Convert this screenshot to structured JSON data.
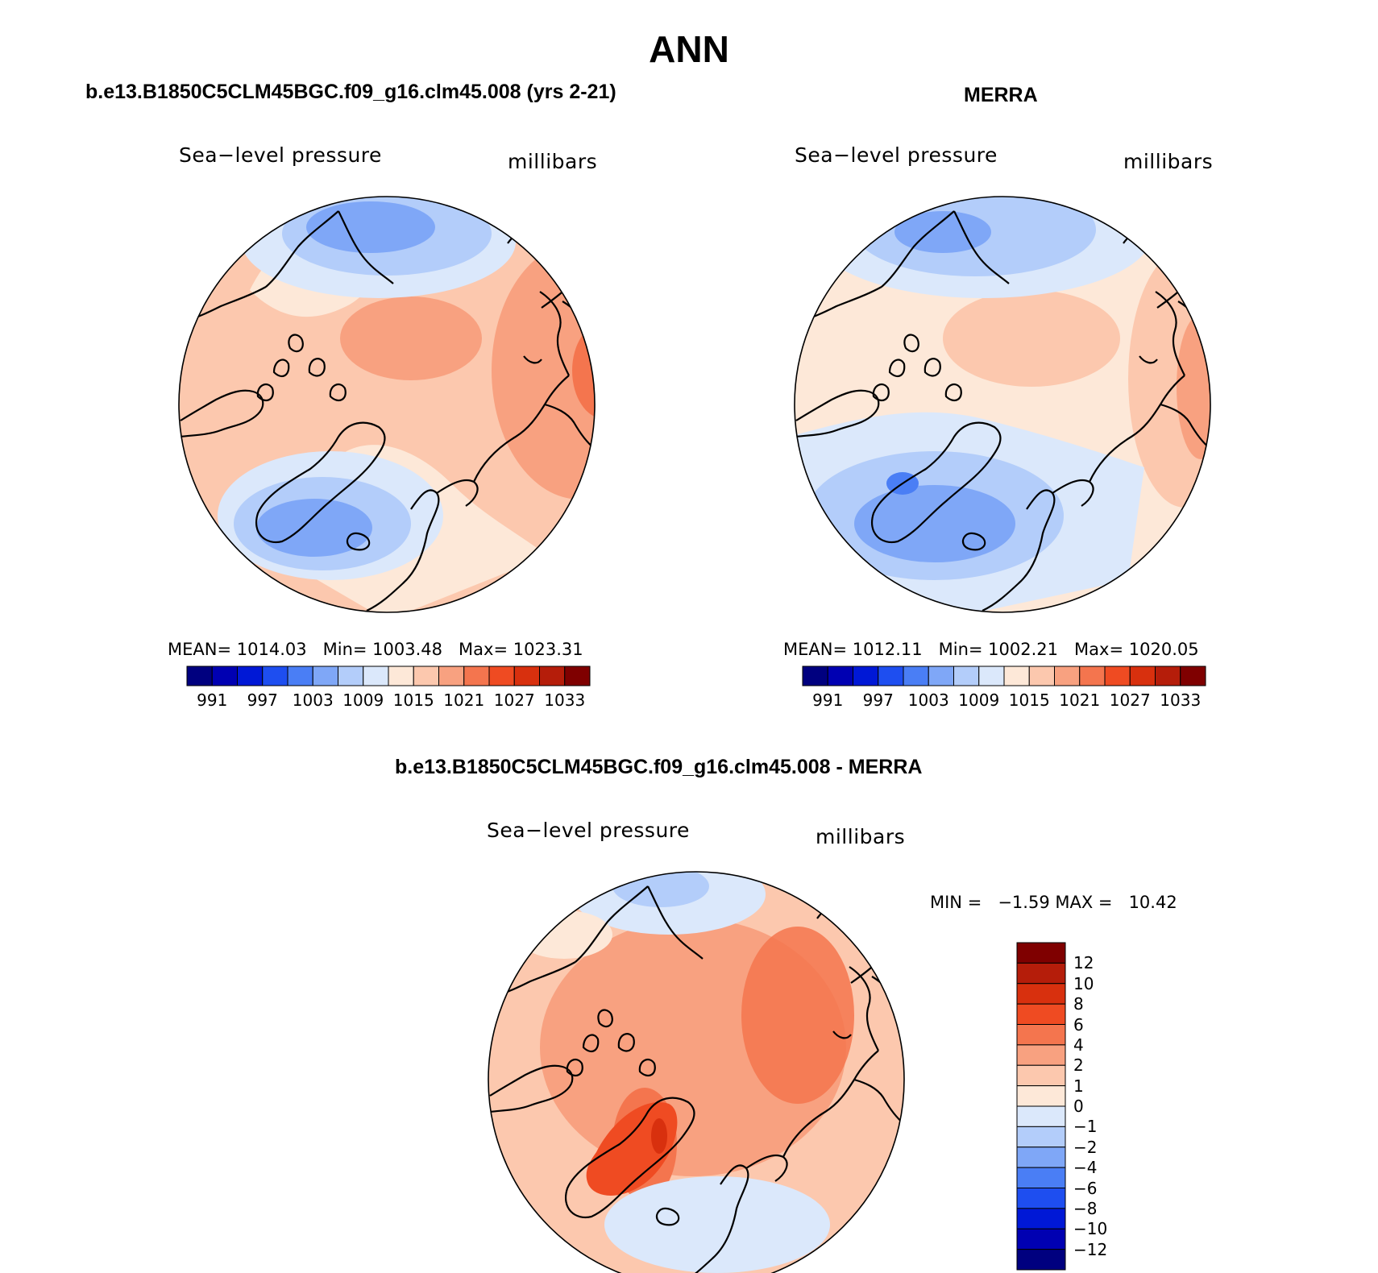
{
  "main_title": "ANN",
  "colors": {
    "blue_scale": [
      "#00007f",
      "#0000b2",
      "#0018d6",
      "#1e4ef0",
      "#4a7ef5",
      "#7fa7f7",
      "#b3cdfa",
      "#dbe8fb"
    ],
    "red_scale": [
      "#fde8d8",
      "#fcc8ae",
      "#f8a180",
      "#f4754e",
      "#ef4b22",
      "#d8300e",
      "#b51d0a",
      "#7f0000"
    ],
    "land_outline": "#000000"
  },
  "panels": [
    {
      "id": "model",
      "title": "b.e13.B1850C5CLM45BGC.f09_g16.clm45.008 (yrs 2-21)",
      "left_label": "Sea−level pressure",
      "right_label": "millibars",
      "stats": {
        "mean_label": "MEAN=",
        "mean": "1014.03",
        "min_label": "Min=",
        "min": "1003.48",
        "max_label": "Max=",
        "max": "1023.31"
      },
      "colorbar_ticks": [
        "991",
        "997",
        "1003",
        "1009",
        "1015",
        "1021",
        "1027",
        "1033"
      ]
    },
    {
      "id": "merra",
      "title": "MERRA",
      "left_label": "Sea−level pressure",
      "right_label": "millibars",
      "stats": {
        "mean_label": "MEAN=",
        "mean": "1012.11",
        "min_label": "Min=",
        "min": "1002.21",
        "max_label": "Max=",
        "max": "1020.05"
      },
      "colorbar_ticks": [
        "991",
        "997",
        "1003",
        "1009",
        "1015",
        "1021",
        "1027",
        "1033"
      ]
    },
    {
      "id": "diff",
      "title": "b.e13.B1850C5CLM45BGC.f09_g16.clm45.008 - MERRA",
      "left_label": "Sea−level pressure",
      "right_label": "millibars",
      "stats": {
        "min_label": "MIN =",
        "min": "−1.59",
        "max_label": "MAX =",
        "max": "10.42"
      },
      "colorbar_ticks": [
        "12",
        "10",
        "8",
        "6",
        "4",
        "2",
        "1",
        "0",
        "−1",
        "−2",
        "−4",
        "−6",
        "−8",
        "−10",
        "−12"
      ]
    }
  ],
  "chart_data": [
    {
      "type": "heatmap",
      "title": "b.e13.B1850C5CLM45BGC.f09_g16.clm45.008 (yrs 2-21)",
      "variable": "Sea−level pressure",
      "units": "millibars",
      "projection": "polar-stereographic, north pole",
      "mean": 1014.03,
      "min": 1003.48,
      "max": 1023.31,
      "contour_levels": [
        991,
        994,
        997,
        1000,
        1003,
        1006,
        1009,
        1012,
        1015,
        1018,
        1021,
        1024,
        1027,
        1030,
        1033
      ],
      "colorbar_labels": [
        991,
        997,
        1003,
        1009,
        1015,
        1021,
        1027,
        1033
      ]
    },
    {
      "type": "heatmap",
      "title": "MERRA",
      "variable": "Sea−level pressure",
      "units": "millibars",
      "projection": "polar-stereographic, north pole",
      "mean": 1012.11,
      "min": 1002.21,
      "max": 1020.05,
      "contour_levels": [
        991,
        994,
        997,
        1000,
        1003,
        1006,
        1009,
        1012,
        1015,
        1018,
        1021,
        1024,
        1027,
        1030,
        1033
      ],
      "colorbar_labels": [
        991,
        997,
        1003,
        1009,
        1015,
        1021,
        1027,
        1033
      ]
    },
    {
      "type": "heatmap",
      "title": "b.e13.B1850C5CLM45BGC.f09_g16.clm45.008 - MERRA",
      "variable": "Sea−level pressure",
      "units": "millibars",
      "projection": "polar-stereographic, north pole",
      "min": -1.59,
      "max": 10.42,
      "contour_levels": [
        -12,
        -10,
        -8,
        -6,
        -4,
        -2,
        -1,
        0,
        1,
        2,
        4,
        6,
        8,
        10,
        12
      ]
    }
  ]
}
